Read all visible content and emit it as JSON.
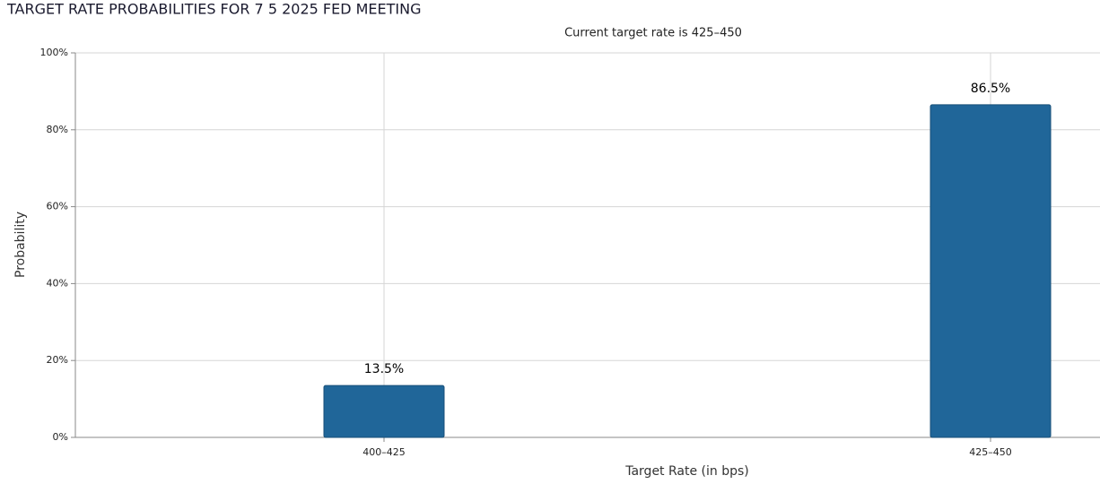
{
  "chart_data": {
    "type": "bar",
    "title": "TARGET RATE PROBABILITIES FOR 7 5 2025 FED MEETING",
    "subtitle": "Current target rate is 425–450",
    "x_label": "Target Rate (in bps)",
    "y_label": "Probability",
    "categories": [
      "400–425",
      "425–450"
    ],
    "values": [
      13.5,
      86.5
    ],
    "value_labels": [
      "13.5%",
      "86.5%"
    ],
    "color": "#206699",
    "ylim": [
      0,
      100
    ],
    "yticks": [
      {
        "value": 0,
        "label": "0%"
      },
      {
        "value": 20,
        "label": "20%"
      },
      {
        "value": 40,
        "label": "40%"
      },
      {
        "value": 60,
        "label": "60%"
      },
      {
        "value": 80,
        "label": "80%"
      },
      {
        "value": 100,
        "label": "100%"
      }
    ],
    "grid": true
  }
}
